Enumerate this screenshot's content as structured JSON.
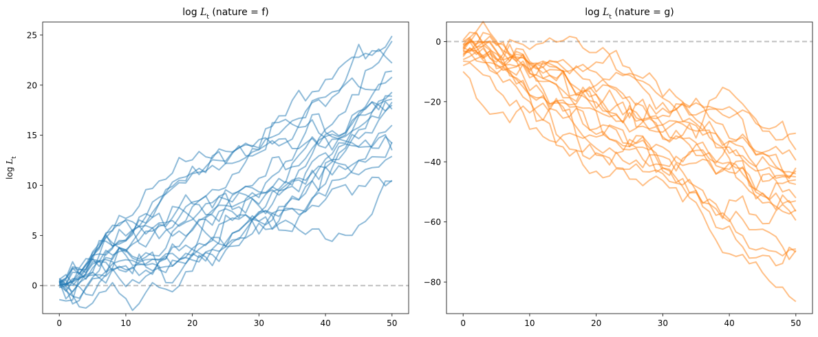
{
  "chart_data": [
    {
      "type": "line",
      "title": {
        "pre": "log ",
        "var": "L",
        "sub": "t",
        "post": " (nature = f)"
      },
      "ylabel": {
        "pre": "log ",
        "var": "L",
        "sub": "t"
      },
      "xlabel": "",
      "xlim": [
        -2.5,
        52.5
      ],
      "ylim": [
        -2.8,
        26.3
      ],
      "xticks": [
        0,
        10,
        20,
        30,
        40,
        50
      ],
      "yticks": [
        0,
        5,
        10,
        15,
        20,
        25
      ],
      "reference_line": {
        "y": 0,
        "style": "dashed",
        "color": "#bfbfbf"
      },
      "color": "#1f77b4",
      "alpha": 0.5,
      "n_points": 51,
      "x_start": 0,
      "x_step": 1,
      "series": [
        {
          "start": 0.3,
          "end": 24.9,
          "seed": 11
        },
        {
          "start": 0.5,
          "end": 24.4,
          "seed": 12
        },
        {
          "start": 0.2,
          "end": 22.2,
          "seed": 13
        },
        {
          "start": 0.6,
          "end": 21.4,
          "seed": 14
        },
        {
          "start": 0.1,
          "end": 20.8,
          "seed": 15
        },
        {
          "start": 0.4,
          "end": 19.3,
          "seed": 16
        },
        {
          "start": 0.0,
          "end": 18.9,
          "seed": 17
        },
        {
          "start": 0.7,
          "end": 18.6,
          "seed": 18
        },
        {
          "start": 0.3,
          "end": 18.3,
          "seed": 19
        },
        {
          "start": -0.2,
          "end": 18.0,
          "seed": 20
        },
        {
          "start": 0.5,
          "end": 17.6,
          "seed": 21
        },
        {
          "start": 0.2,
          "end": 16.0,
          "seed": 22
        },
        {
          "start": -1.4,
          "end": 14.3,
          "seed": 23
        },
        {
          "start": 0.4,
          "end": 14.2,
          "seed": 24
        },
        {
          "start": 0.1,
          "end": 13.5,
          "seed": 25
        },
        {
          "start": 0.6,
          "end": 12.9,
          "seed": 26
        },
        {
          "start": 0.0,
          "end": 10.5,
          "seed": 27
        },
        {
          "start": 0.3,
          "end": 10.4,
          "seed": 28
        }
      ]
    },
    {
      "type": "line",
      "title": {
        "pre": "log ",
        "var": "L",
        "sub": "t",
        "post": " (nature = g)"
      },
      "ylabel": {
        "pre": "",
        "var": "",
        "sub": ""
      },
      "xlabel": "",
      "xlim": [
        -2.5,
        52.5
      ],
      "ylim": [
        -90.5,
        6.5
      ],
      "xticks": [
        0,
        10,
        20,
        30,
        40,
        50
      ],
      "yticks": [
        0,
        -20,
        -40,
        -60,
        -80
      ],
      "reference_line": {
        "y": 0,
        "style": "dashed",
        "color": "#bfbfbf"
      },
      "color": "#ff7f0e",
      "alpha": 0.5,
      "n_points": 51,
      "x_start": 0,
      "x_step": 1,
      "series": [
        {
          "start": 0.5,
          "end": -30.5,
          "seed": 31
        },
        {
          "start": 0.0,
          "end": -36.0,
          "seed": 32
        },
        {
          "start": -1.0,
          "end": -39.5,
          "seed": 33
        },
        {
          "start": -2.0,
          "end": -42.0,
          "seed": 34
        },
        {
          "start": -3.0,
          "end": -43.0,
          "seed": 35
        },
        {
          "start": -1.5,
          "end": -44.0,
          "seed": 36
        },
        {
          "start": -4.0,
          "end": -45.0,
          "seed": 37
        },
        {
          "start": -5.0,
          "end": -46.0,
          "seed": 38
        },
        {
          "start": -2.5,
          "end": -47.5,
          "seed": 39
        },
        {
          "start": -6.0,
          "end": -52.0,
          "seed": 40
        },
        {
          "start": -3.5,
          "end": -53.0,
          "seed": 41
        },
        {
          "start": -1.0,
          "end": -56.0,
          "seed": 42
        },
        {
          "start": -4.5,
          "end": -56.5,
          "seed": 43
        },
        {
          "start": -8.0,
          "end": -59.5,
          "seed": 44
        },
        {
          "start": -2.0,
          "end": -69.0,
          "seed": 45
        },
        {
          "start": -6.5,
          "end": -69.5,
          "seed": 46
        },
        {
          "start": -10.0,
          "end": -70.0,
          "seed": 47
        },
        {
          "start": -3.0,
          "end": -86.5,
          "seed": 48
        }
      ]
    }
  ]
}
